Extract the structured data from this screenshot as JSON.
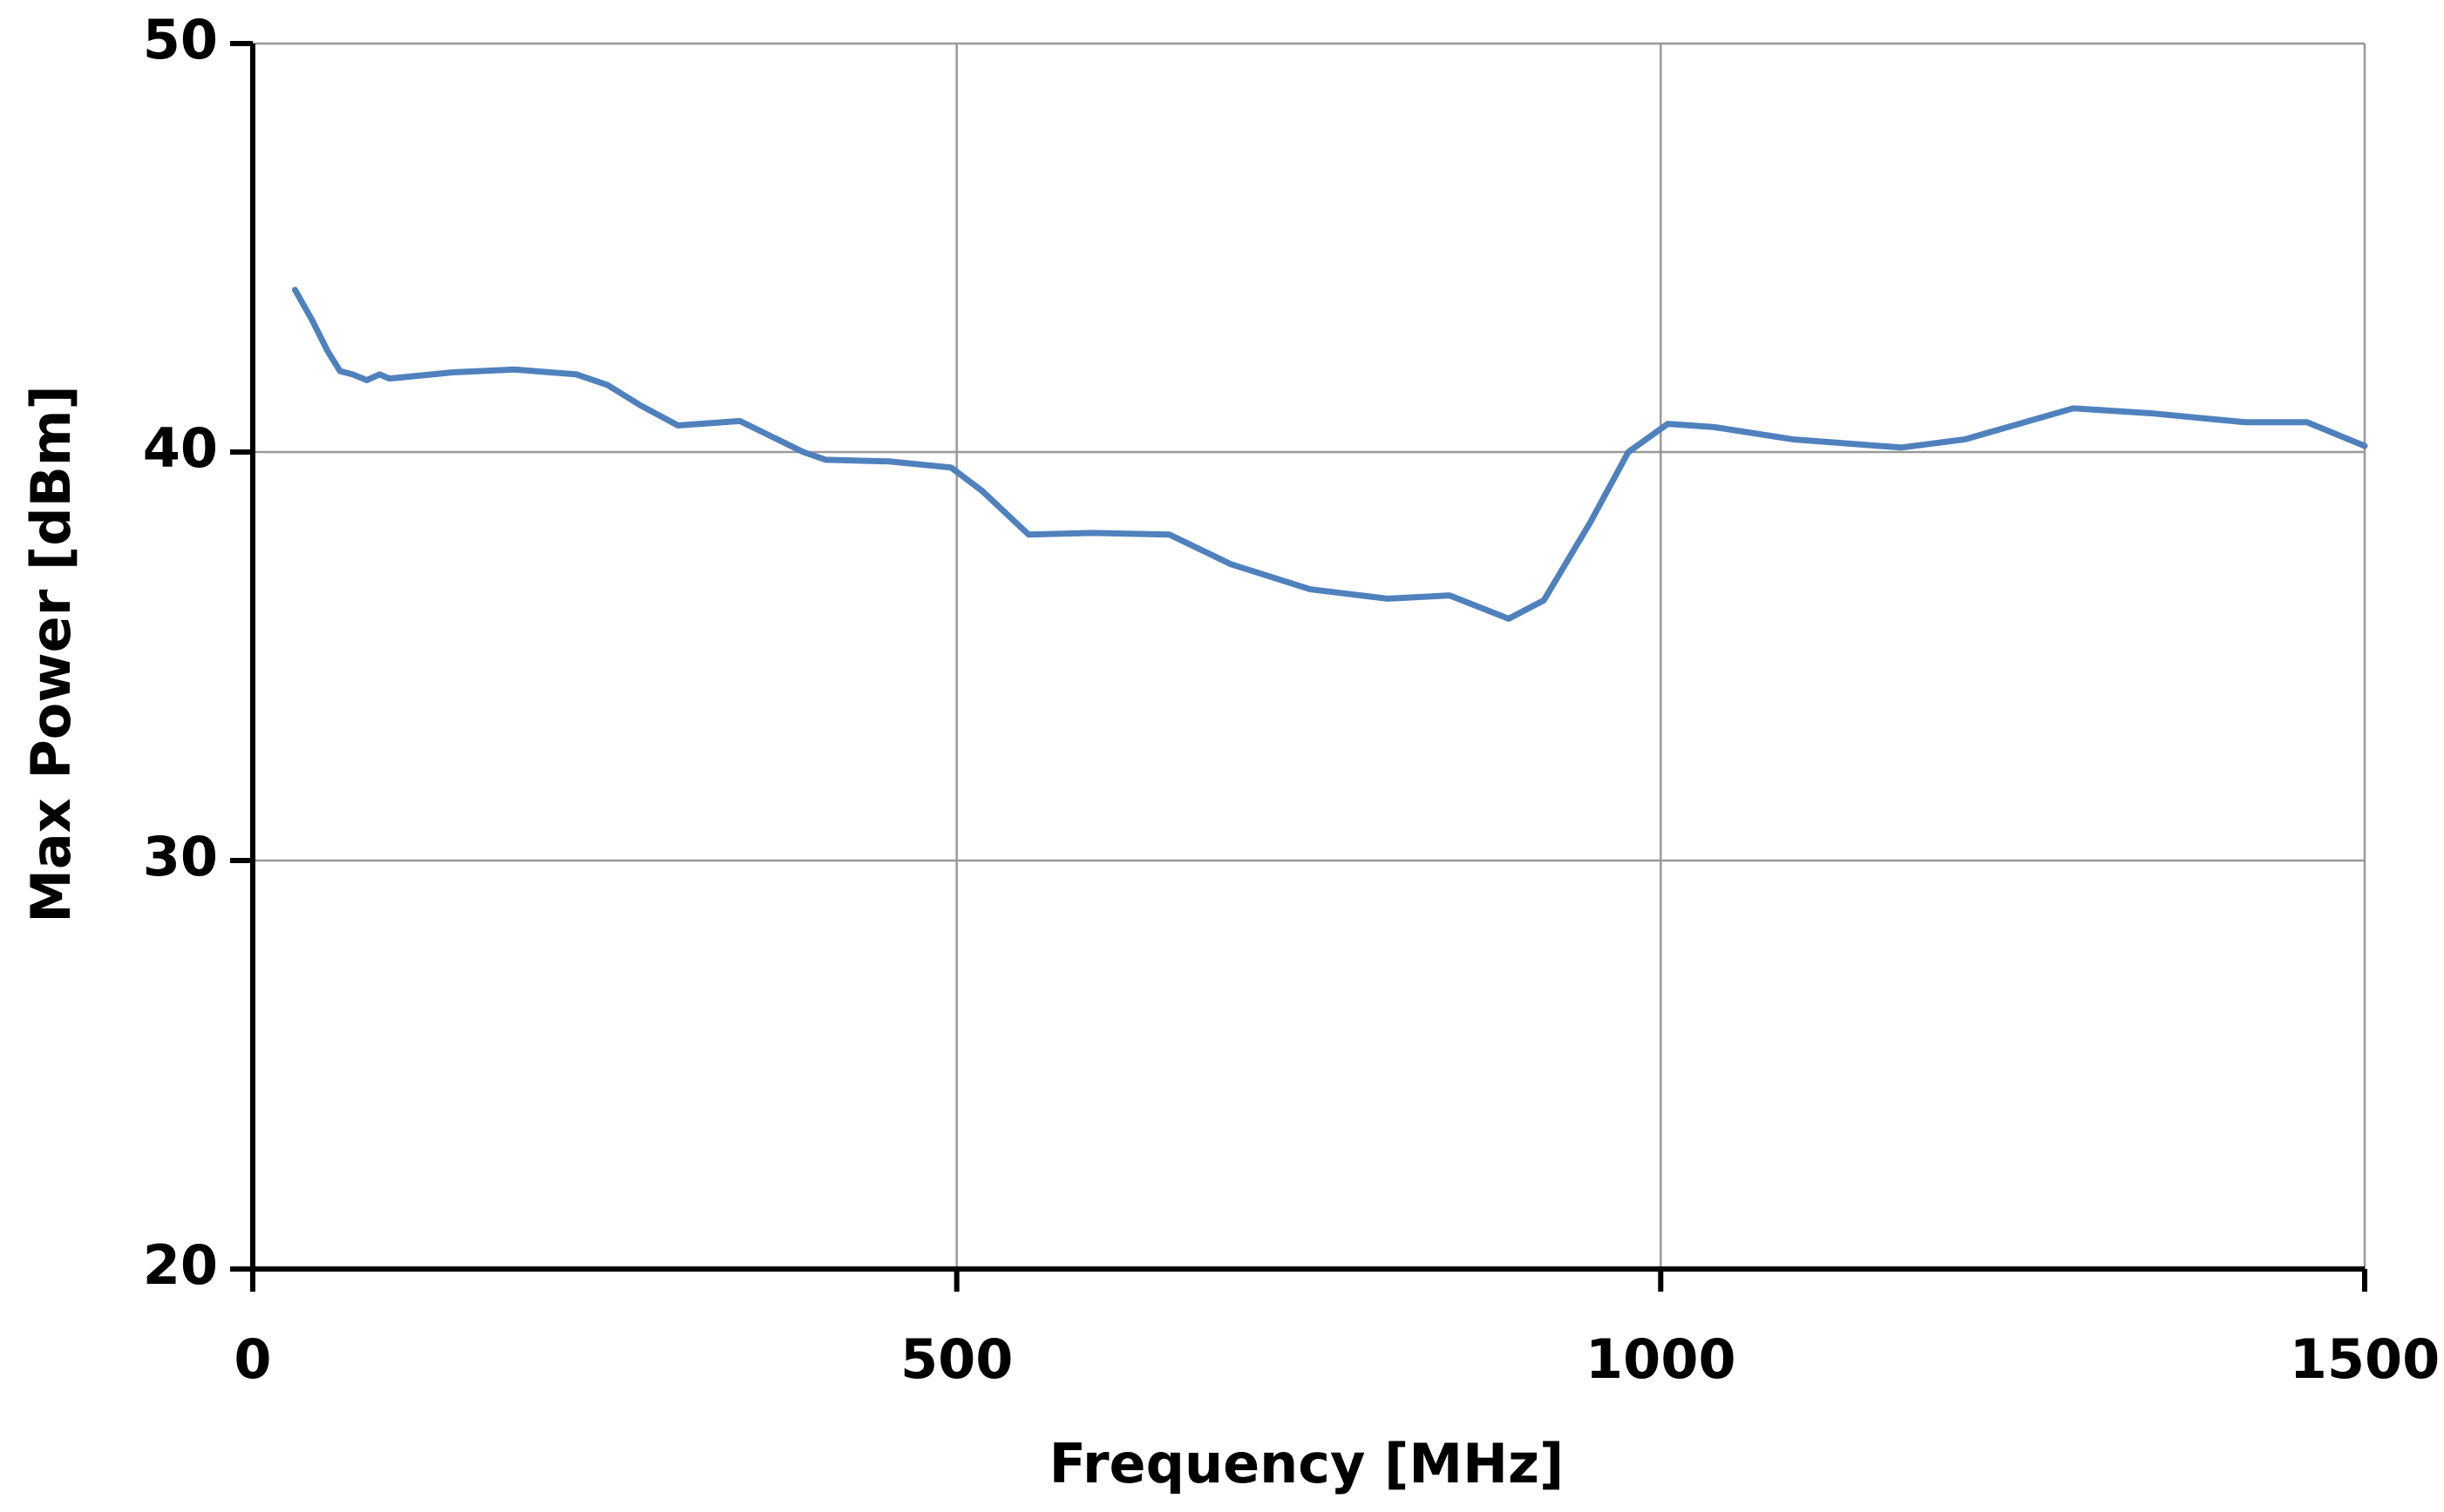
{
  "chart_data": {
    "type": "line",
    "xlabel": "Frequency [MHz]",
    "ylabel": "Max Power [dBm]",
    "xlim": [
      0,
      1500
    ],
    "xticks": [
      0,
      500,
      1000,
      1500
    ],
    "ylim": [
      20,
      50
    ],
    "yticks": [
      20,
      30,
      40,
      50
    ],
    "grid": true,
    "series": [
      {
        "color": "#4f81bd",
        "x": [
          30,
          42,
          53,
          62,
          71,
          81,
          90,
          97,
          142,
          186,
          230,
          252,
          275,
          302,
          346,
          391,
          407,
          452,
          496,
          518,
          551,
          596,
          651,
          695,
          751,
          806,
          850,
          892,
          917,
          950,
          977,
          1005,
          1038,
          1094,
          1171,
          1216,
          1293,
          1348,
          1415,
          1459,
          1500
        ],
        "values": [
          43.97,
          43.24,
          42.48,
          41.98,
          41.9,
          41.76,
          41.9,
          41.8,
          41.95,
          42.02,
          41.9,
          41.64,
          41.15,
          40.65,
          40.76,
          40.0,
          39.81,
          39.77,
          39.62,
          39.05,
          37.98,
          38.02,
          37.98,
          37.25,
          36.64,
          36.41,
          36.49,
          35.92,
          36.37,
          38.28,
          40.0,
          40.69,
          40.61,
          40.31,
          40.11,
          40.31,
          41.07,
          40.95,
          40.73,
          40.73,
          40.15
        ]
      }
    ]
  }
}
